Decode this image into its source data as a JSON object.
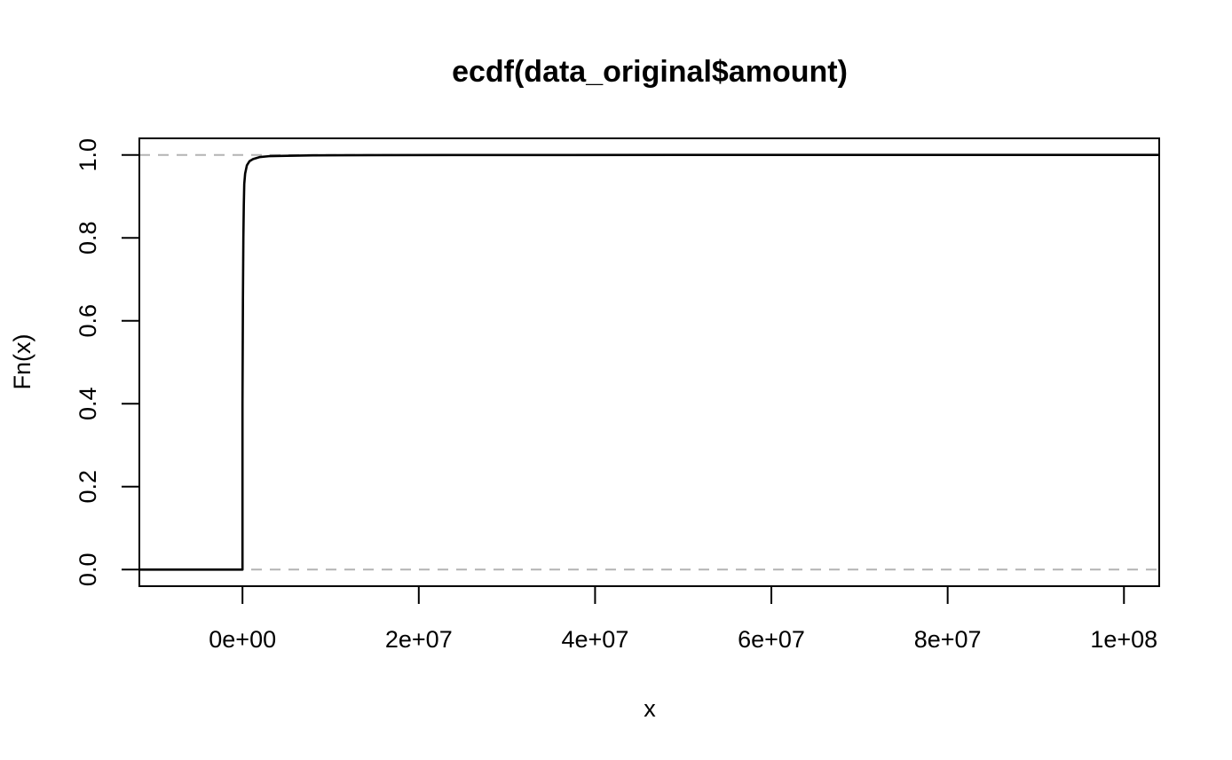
{
  "chart_data": {
    "type": "line",
    "title": "ecdf(data_original$amount)",
    "xlabel": "x",
    "ylabel": "Fn(x)",
    "xlim": [
      -11700000,
      104000000
    ],
    "ylim": [
      -0.04,
      1.04
    ],
    "x_ticks": [
      {
        "value": 0,
        "label": "0e+00"
      },
      {
        "value": 20000000,
        "label": "2e+07"
      },
      {
        "value": 40000000,
        "label": "4e+07"
      },
      {
        "value": 60000000,
        "label": "6e+07"
      },
      {
        "value": 80000000,
        "label": "8e+07"
      },
      {
        "value": 100000000,
        "label": "1e+08"
      }
    ],
    "y_ticks": [
      {
        "value": 0.0,
        "label": "0.0"
      },
      {
        "value": 0.2,
        "label": "0.2"
      },
      {
        "value": 0.4,
        "label": "0.4"
      },
      {
        "value": 0.6,
        "label": "0.6"
      },
      {
        "value": 0.8,
        "label": "0.8"
      },
      {
        "value": 1.0,
        "label": "1.0"
      }
    ],
    "reference_lines": [
      {
        "y": 0,
        "style": "dashed",
        "color": "#b3b3b3"
      },
      {
        "y": 1,
        "style": "dashed",
        "color": "#b3b3b3"
      }
    ],
    "series": [
      {
        "color": "#000000",
        "x": [
          -11700000,
          0,
          0,
          50000,
          100000,
          150000,
          200000,
          300000,
          500000,
          800000,
          1200000,
          2000000,
          3000000,
          5000000,
          8000000,
          15000000,
          30000000,
          60000000,
          104000000
        ],
        "y": [
          0,
          0,
          0.4,
          0.65,
          0.8,
          0.88,
          0.93,
          0.955,
          0.975,
          0.985,
          0.99,
          0.995,
          0.997,
          0.998,
          0.999,
          0.9995,
          0.9998,
          1.0,
          1.0
        ]
      }
    ]
  }
}
